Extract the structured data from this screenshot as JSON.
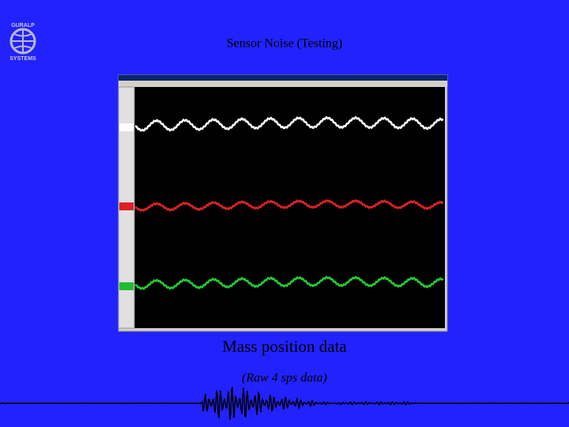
{
  "slide": {
    "logo": {
      "top": "GURALP",
      "bottom": "SYSTEMS"
    },
    "title": "Sensor Noise (Testing)",
    "caption": "Mass position data",
    "subcaption": "(Raw 4 sps data)"
  }
}
